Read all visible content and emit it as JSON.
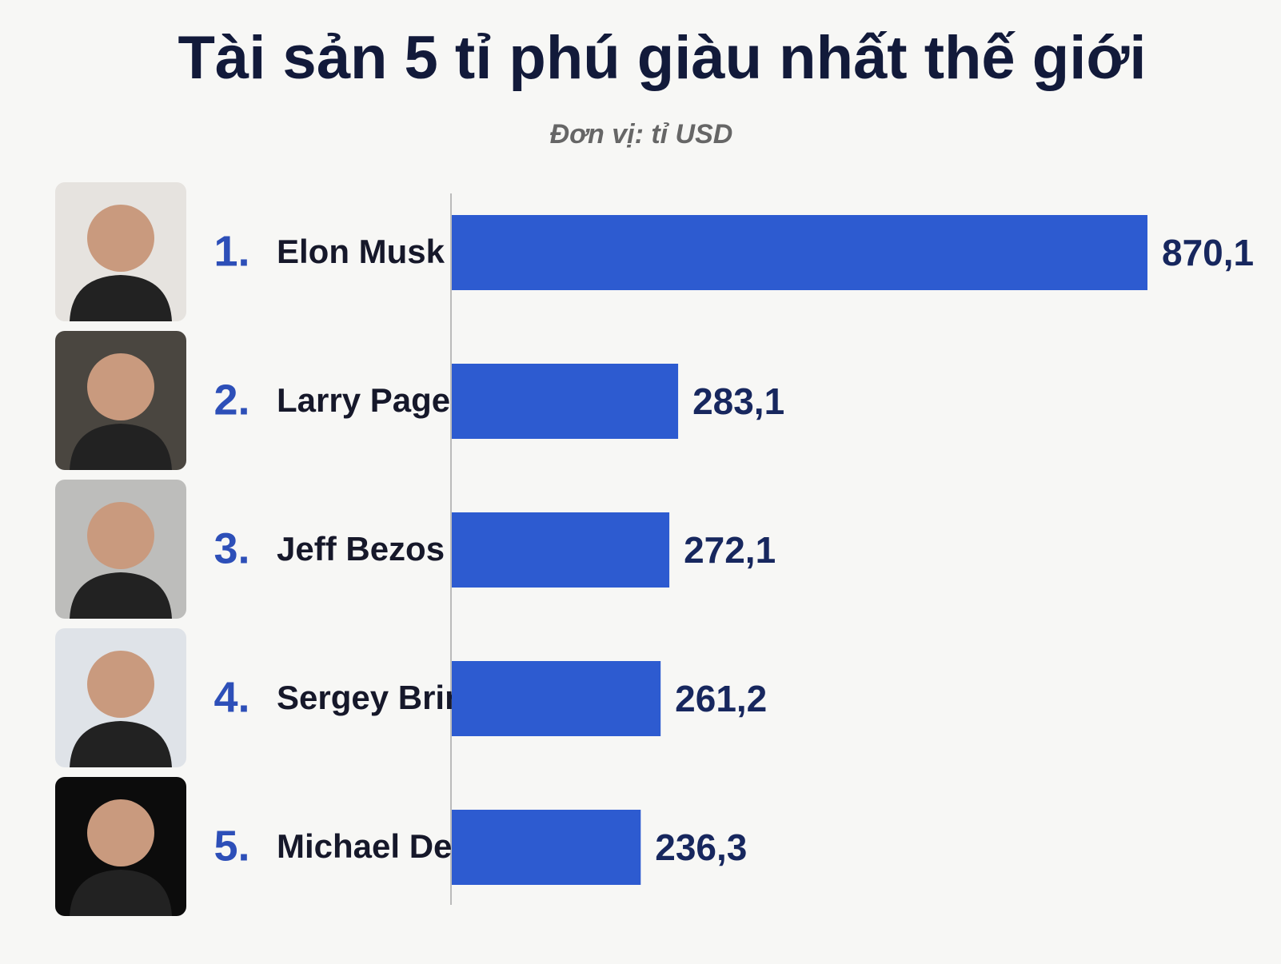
{
  "chart_data": {
    "type": "bar",
    "orientation": "horizontal",
    "title": "Tài sản 5 tỉ phú giàu nhất thế giới",
    "subtitle": "Đơn vị: tỉ USD",
    "ranks": [
      "1.",
      "2.",
      "3.",
      "4.",
      "5."
    ],
    "categories": [
      "Elon Musk",
      "Larry Page",
      "Jeff Bezos",
      "Sergey Brin",
      "Michael Dell"
    ],
    "values": [
      870.1,
      283.1,
      272.1,
      261.2,
      236.3
    ],
    "value_labels": [
      "870,1",
      "283,1",
      "272,1",
      "261,2",
      "236,3"
    ],
    "color": "#2d5bd0"
  }
}
